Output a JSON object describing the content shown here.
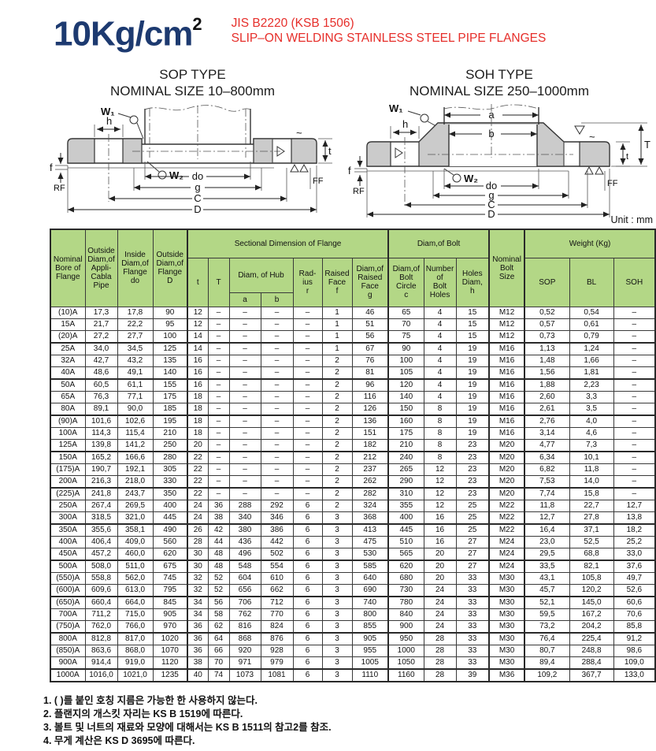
{
  "header": {
    "pressure": "10Kg/cm",
    "pressure_exp": "2",
    "standard": "JIS B2220 (KSB 1506)",
    "subtitle": "SLIP–ON WELDING STAINLESS STEEL PIPE FLANGES"
  },
  "diagrams": {
    "sop": {
      "title": "SOP TYPE",
      "size_range": "NOMINAL SIZE 10–800mm",
      "labels": {
        "w1": "W₁",
        "w2": "W₂",
        "h": "h",
        "f": "f",
        "rf": "RF",
        "ff": "FF",
        "t": "t",
        "tilde": "~",
        "do": "do",
        "g": "g",
        "c": "C",
        "d": "D"
      }
    },
    "soh": {
      "title": "SOH TYPE",
      "size_range": "NOMINAL SIZE 250–1000mm",
      "labels": {
        "w1": "W₁",
        "w2": "W₂",
        "h": "h",
        "f": "f",
        "rf": "RF",
        "ff": "FF",
        "t": "t",
        "T": "T",
        "a": "a",
        "b": "b",
        "tilde": "~",
        "do": "do",
        "g": "g",
        "c": "C",
        "d": "D"
      }
    }
  },
  "unit_label": "Unit : mm",
  "table": {
    "headers": {
      "nominal_bore": "Nominal\nBore of\nFlange",
      "pipe_od": "Outside\nDiam,of\nAppli-\nCabla\nPipe",
      "flange_id": "Inside\nDiam,of\nFlange\ndo",
      "flange_od": "Outside\nDiam,of\nFlange\nD",
      "sectional": "Sectional Dimension of Flange",
      "t": "t",
      "T": "T",
      "hub": "Diam, of Hub",
      "a": "a",
      "b": "b",
      "radius": "Rad-\nius\nr",
      "raised_face": "Raised\nFace\nf",
      "raised_face_diam": "Diam,of\nRaised\nFace\ng",
      "bolt_group": "Diam,of Bolt",
      "bolt_circle": "Diam,of\nBolt\nCircle\nc",
      "bolt_holes": "Number\nof\nBolt\nHoles",
      "holes_diam": "Holes\nDiam,\nh",
      "bolt_size": "Nominal\nBolt\nSize",
      "weight": "Weight (Kg)",
      "sop": "SOP",
      "bl": "BL",
      "soh": "SOH"
    },
    "col_keys": [
      "nominal_bore",
      "pipe_od",
      "flange_id",
      "flange_od",
      "t",
      "T",
      "hub_a",
      "hub_b",
      "radius_r",
      "raised_face_f",
      "raised_face_g",
      "bolt_circle_c",
      "bolt_holes",
      "hole_diam_h",
      "bolt_size",
      "weight_sop",
      "weight_bl",
      "weight_soh"
    ],
    "rows": [
      [
        "(10)A",
        "17,3",
        "17,8",
        "90",
        "12",
        "–",
        "–",
        "–",
        "–",
        "1",
        "46",
        "65",
        "4",
        "15",
        "M12",
        "0,52",
        "0,54",
        "–"
      ],
      [
        "15A",
        "21,7",
        "22,2",
        "95",
        "12",
        "–",
        "–",
        "–",
        "–",
        "1",
        "51",
        "70",
        "4",
        "15",
        "M12",
        "0,57",
        "0,61",
        "–"
      ],
      [
        "(20)A",
        "27,2",
        "27,7",
        "100",
        "14",
        "–",
        "–",
        "–",
        "–",
        "1",
        "56",
        "75",
        "4",
        "15",
        "M12",
        "0,73",
        "0,79",
        "–"
      ],
      [
        "25A",
        "34,0",
        "34,5",
        "125",
        "14",
        "–",
        "–",
        "–",
        "–",
        "1",
        "67",
        "90",
        "4",
        "19",
        "M16",
        "1,13",
        "1,24",
        "–"
      ],
      [
        "32A",
        "42,7",
        "43,2",
        "135",
        "16",
        "–",
        "–",
        "–",
        "–",
        "2",
        "76",
        "100",
        "4",
        "19",
        "M16",
        "1,48",
        "1,66",
        "–"
      ],
      [
        "40A",
        "48,6",
        "49,1",
        "140",
        "16",
        "–",
        "–",
        "–",
        "–",
        "2",
        "81",
        "105",
        "4",
        "19",
        "M16",
        "1,56",
        "1,81",
        "–"
      ],
      [
        "50A",
        "60,5",
        "61,1",
        "155",
        "16",
        "–",
        "–",
        "–",
        "–",
        "2",
        "96",
        "120",
        "4",
        "19",
        "M16",
        "1,88",
        "2,23",
        "–"
      ],
      [
        "65A",
        "76,3",
        "77,1",
        "175",
        "18",
        "–",
        "–",
        "–",
        "–",
        "2",
        "116",
        "140",
        "4",
        "19",
        "M16",
        "2,60",
        "3,3",
        "–"
      ],
      [
        "80A",
        "89,1",
        "90,0",
        "185",
        "18",
        "–",
        "–",
        "–",
        "–",
        "2",
        "126",
        "150",
        "8",
        "19",
        "M16",
        "2,61",
        "3,5",
        "–"
      ],
      [
        "(90)A",
        "101,6",
        "102,6",
        "195",
        "18",
        "–",
        "–",
        "–",
        "–",
        "2",
        "136",
        "160",
        "8",
        "19",
        "M16",
        "2,76",
        "4,0",
        "–"
      ],
      [
        "100A",
        "114,3",
        "115,4",
        "210",
        "18",
        "–",
        "–",
        "–",
        "–",
        "2",
        "151",
        "175",
        "8",
        "19",
        "M16",
        "3,14",
        "4,6",
        "–"
      ],
      [
        "125A",
        "139,8",
        "141,2",
        "250",
        "20",
        "–",
        "–",
        "–",
        "–",
        "2",
        "182",
        "210",
        "8",
        "23",
        "M20",
        "4,77",
        "7,3",
        "–"
      ],
      [
        "150A",
        "165,2",
        "166,6",
        "280",
        "22",
        "–",
        "–",
        "–",
        "–",
        "2",
        "212",
        "240",
        "8",
        "23",
        "M20",
        "6,34",
        "10,1",
        "–"
      ],
      [
        "(175)A",
        "190,7",
        "192,1",
        "305",
        "22",
        "–",
        "–",
        "–",
        "–",
        "2",
        "237",
        "265",
        "12",
        "23",
        "M20",
        "6,82",
        "11,8",
        "–"
      ],
      [
        "200A",
        "216,3",
        "218,0",
        "330",
        "22",
        "–",
        "–",
        "–",
        "–",
        "2",
        "262",
        "290",
        "12",
        "23",
        "M20",
        "7,53",
        "14,0",
        "–"
      ],
      [
        "(225)A",
        "241,8",
        "243,7",
        "350",
        "22",
        "–",
        "–",
        "–",
        "–",
        "2",
        "282",
        "310",
        "12",
        "23",
        "M20",
        "7,74",
        "15,8",
        "–"
      ],
      [
        "250A",
        "267,4",
        "269,5",
        "400",
        "24",
        "36",
        "288",
        "292",
        "6",
        "2",
        "324",
        "355",
        "12",
        "25",
        "M22",
        "11,8",
        "22,7",
        "12,7"
      ],
      [
        "300A",
        "318,5",
        "321,0",
        "445",
        "24",
        "38",
        "340",
        "346",
        "6",
        "3",
        "368",
        "400",
        "16",
        "25",
        "M22",
        "12,7",
        "27,8",
        "13,8"
      ],
      [
        "350A",
        "355,6",
        "358,1",
        "490",
        "26",
        "42",
        "380",
        "386",
        "6",
        "3",
        "413",
        "445",
        "16",
        "25",
        "M22",
        "16,4",
        "37,1",
        "18,2"
      ],
      [
        "400A",
        "406,4",
        "409,0",
        "560",
        "28",
        "44",
        "436",
        "442",
        "6",
        "3",
        "475",
        "510",
        "16",
        "27",
        "M24",
        "23,0",
        "52,5",
        "25,2"
      ],
      [
        "450A",
        "457,2",
        "460,0",
        "620",
        "30",
        "48",
        "496",
        "502",
        "6",
        "3",
        "530",
        "565",
        "20",
        "27",
        "M24",
        "29,5",
        "68,8",
        "33,0"
      ],
      [
        "500A",
        "508,0",
        "511,0",
        "675",
        "30",
        "48",
        "548",
        "554",
        "6",
        "3",
        "585",
        "620",
        "20",
        "27",
        "M24",
        "33,5",
        "82,1",
        "37,6"
      ],
      [
        "(550)A",
        "558,8",
        "562,0",
        "745",
        "32",
        "52",
        "604",
        "610",
        "6",
        "3",
        "640",
        "680",
        "20",
        "33",
        "M30",
        "43,1",
        "105,8",
        "49,7"
      ],
      [
        "(600)A",
        "609,6",
        "613,0",
        "795",
        "32",
        "52",
        "656",
        "662",
        "6",
        "3",
        "690",
        "730",
        "24",
        "33",
        "M30",
        "45,7",
        "120,2",
        "52,6"
      ],
      [
        "(650)A",
        "660,4",
        "664,0",
        "845",
        "34",
        "56",
        "706",
        "712",
        "6",
        "3",
        "740",
        "780",
        "24",
        "33",
        "M30",
        "52,1",
        "145,0",
        "60,6"
      ],
      [
        "700A",
        "711,2",
        "715,0",
        "905",
        "34",
        "58",
        "762",
        "770",
        "6",
        "3",
        "800",
        "840",
        "24",
        "33",
        "M30",
        "59,5",
        "167,2",
        "70,6"
      ],
      [
        "(750)A",
        "762,0",
        "766,0",
        "970",
        "36",
        "62",
        "816",
        "824",
        "6",
        "3",
        "855",
        "900",
        "24",
        "33",
        "M30",
        "73,2",
        "204,2",
        "85,8"
      ],
      [
        "800A",
        "812,8",
        "817,0",
        "1020",
        "36",
        "64",
        "868",
        "876",
        "6",
        "3",
        "905",
        "950",
        "28",
        "33",
        "M30",
        "76,4",
        "225,4",
        "91,2"
      ],
      [
        "(850)A",
        "863,6",
        "868,0",
        "1070",
        "36",
        "66",
        "920",
        "928",
        "6",
        "3",
        "955",
        "1000",
        "28",
        "33",
        "M30",
        "80,7",
        "248,8",
        "98,6"
      ],
      [
        "900A",
        "914,4",
        "919,0",
        "1120",
        "38",
        "70",
        "971",
        "979",
        "6",
        "3",
        "1005",
        "1050",
        "28",
        "33",
        "M30",
        "89,4",
        "288,4",
        "109,0"
      ],
      [
        "1000A",
        "1016,0",
        "1021,0",
        "1235",
        "40",
        "74",
        "1073",
        "1081",
        "6",
        "3",
        "1110",
        "1160",
        "28",
        "39",
        "M36",
        "109,2",
        "367,7",
        "133,0"
      ]
    ]
  },
  "footnotes": [
    "1. (   )를 붙인 호칭 지름은 가능한 한 사용하지 않는다.",
    "2. 플랜지의 개스킷 자리는 KS B 1519에 따른다.",
    "3. 볼트 및 너트의 재료와 모양에 대해서는 KS B 1511의 참고2를 참조.",
    "4. 무게 계산은  KS D 3695에 따른다."
  ],
  "colors": {
    "accent_green": "#b3d786",
    "title_blue": "#1d3a70",
    "title_red": "#e62e2a"
  }
}
